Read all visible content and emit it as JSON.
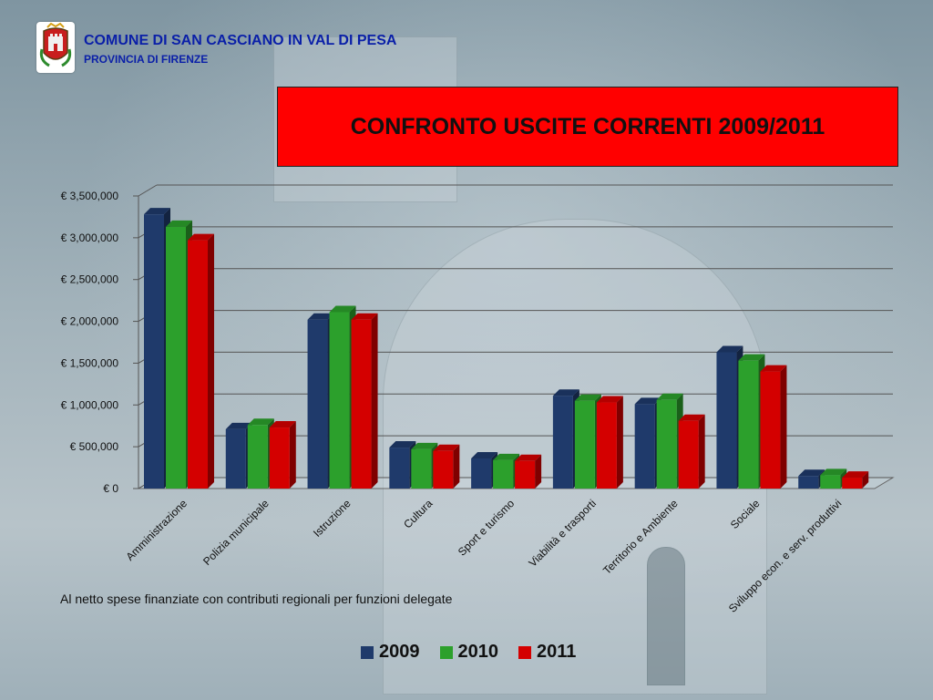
{
  "header": {
    "org_name": "COMUNE DI SAN CASCIANO IN VAL DI PESA",
    "org_sub": "PROVINCIA  DI FIRENZE"
  },
  "colors": {
    "series_2009": "#1f3a6b",
    "series_2010": "#2ca02c",
    "series_2011": "#d40000",
    "title_box": "#ff0000",
    "org_text": "#0a1fa8"
  },
  "chart_data": {
    "type": "bar",
    "title": "CONFRONTO USCITE CORRENTI 2009/2011",
    "categories": [
      "Amministrazione",
      "Polizia municipale",
      "Istruzione",
      "Cultura",
      "Sport e turismo",
      "Viabilità e trasporti",
      "Territorio e Ambiente",
      "Sociale",
      "Sviluppo econ. e serv. produttivi"
    ],
    "series": [
      {
        "name": "2009",
        "values": [
          3280000,
          710000,
          2020000,
          490000,
          360000,
          1110000,
          1010000,
          1630000,
          150000
        ]
      },
      {
        "name": "2010",
        "values": [
          3130000,
          760000,
          2110000,
          470000,
          340000,
          1050000,
          1060000,
          1530000,
          160000
        ]
      },
      {
        "name": "2011",
        "values": [
          2970000,
          730000,
          2020000,
          450000,
          330000,
          1030000,
          810000,
          1400000,
          130000
        ]
      }
    ],
    "ylim": [
      0,
      3500000
    ],
    "yticks": [
      0,
      500000,
      1000000,
      1500000,
      2000000,
      2500000,
      3000000,
      3500000
    ],
    "ytick_labels": [
      "€ 0",
      "€ 500,000",
      "€ 1,000,000",
      "€ 1,500,000",
      "€ 2,000,000",
      "€ 2,500,000",
      "€ 3,000,000",
      "€ 3,500,000"
    ],
    "grid": true,
    "legend": "bottom",
    "note": "Al netto spese finanziate con contributi regionali per funzioni delegate"
  }
}
